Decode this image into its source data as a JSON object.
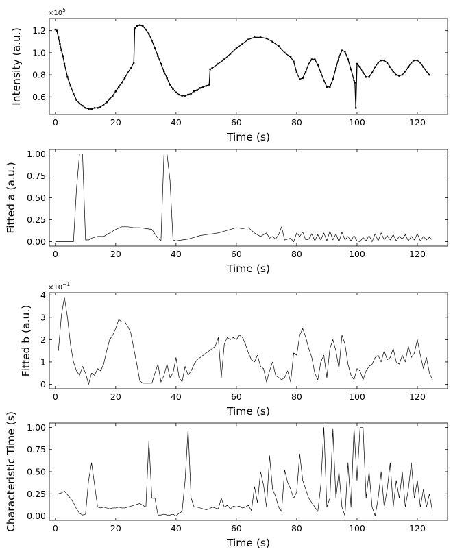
{
  "chart_data": [
    {
      "type": "line",
      "xlabel": "Time (s)",
      "ylabel": "Intensity (a.u.)",
      "scale_label": "×10",
      "scale_exp": "5",
      "xlim": [
        -2,
        130
      ],
      "ylim": [
        0.44,
        1.31
      ],
      "xticks": [
        0,
        20,
        40,
        60,
        80,
        100,
        120
      ],
      "yticks": [
        0.6,
        0.8,
        1.0,
        1.2
      ],
      "ytick_labels": [
        "0.6",
        "0.8",
        "1.0",
        "1.2"
      ],
      "series": [
        {
          "x": [
            0,
            0.5,
            1,
            1.5,
            2,
            2.5,
            3,
            4,
            5,
            6,
            7,
            8,
            9,
            10,
            11,
            12,
            13,
            14,
            15,
            16,
            17,
            18,
            19,
            20,
            21,
            22,
            23,
            24,
            25,
            26,
            26.3,
            27,
            28,
            29,
            30,
            31,
            32,
            33,
            34,
            35,
            36,
            37,
            38,
            39,
            40,
            41,
            42,
            43,
            44,
            45,
            46,
            47,
            48,
            49,
            50,
            51,
            51.3,
            52,
            54,
            56,
            58,
            60,
            62,
            64,
            66,
            68,
            70,
            72,
            74,
            76,
            78,
            79,
            80,
            81,
            82,
            83,
            84,
            85,
            86,
            87,
            88,
            89,
            90,
            91,
            92,
            93,
            94,
            95,
            96,
            97,
            98,
            99,
            99.3,
            99.6,
            100,
            101,
            102,
            103,
            104,
            105,
            106,
            107,
            108,
            109,
            110,
            111,
            112,
            113,
            114,
            115,
            116,
            117,
            118,
            119,
            120,
            121,
            122,
            123,
            124
          ],
          "y": [
            1.21,
            1.2,
            1.14,
            1.08,
            1.02,
            0.97,
            0.9,
            0.78,
            0.7,
            0.63,
            0.57,
            0.54,
            0.52,
            0.5,
            0.49,
            0.49,
            0.5,
            0.5,
            0.51,
            0.53,
            0.55,
            0.58,
            0.61,
            0.65,
            0.69,
            0.73,
            0.77,
            0.82,
            0.86,
            0.91,
            1.22,
            1.24,
            1.25,
            1.24,
            1.21,
            1.17,
            1.11,
            1.04,
            0.97,
            0.9,
            0.83,
            0.77,
            0.71,
            0.67,
            0.64,
            0.62,
            0.61,
            0.61,
            0.62,
            0.63,
            0.65,
            0.66,
            0.68,
            0.69,
            0.7,
            0.71,
            0.85,
            0.86,
            0.9,
            0.94,
            0.99,
            1.04,
            1.08,
            1.12,
            1.14,
            1.14,
            1.13,
            1.1,
            1.06,
            1.0,
            0.96,
            0.92,
            0.82,
            0.76,
            0.77,
            0.83,
            0.9,
            0.94,
            0.94,
            0.89,
            0.82,
            0.75,
            0.69,
            0.69,
            0.76,
            0.86,
            0.96,
            1.02,
            1.01,
            0.94,
            0.85,
            0.75,
            0.73,
            0.5,
            0.9,
            0.87,
            0.82,
            0.78,
            0.78,
            0.82,
            0.87,
            0.91,
            0.93,
            0.93,
            0.91,
            0.87,
            0.83,
            0.8,
            0.79,
            0.8,
            0.83,
            0.87,
            0.91,
            0.93,
            0.93,
            0.91,
            0.87,
            0.83,
            0.8
          ]
        }
      ]
    },
    {
      "type": "line",
      "xlabel": "Time (s)",
      "ylabel": "Fitted a (a.u.)",
      "xlim": [
        -2,
        130
      ],
      "ylim": [
        -0.05,
        1.05
      ],
      "xticks": [
        0,
        20,
        40,
        60,
        80,
        100,
        120
      ],
      "yticks": [
        0.0,
        0.25,
        0.5,
        0.75,
        1.0
      ],
      "ytick_labels": [
        "0.00",
        "0.25",
        "0.50",
        "0.75",
        "1.00"
      ],
      "series": [
        {
          "x": [
            0,
            2,
            4,
            6,
            7,
            8,
            9,
            10,
            11,
            12,
            14,
            16,
            18,
            20,
            22,
            24,
            26,
            28,
            30,
            32,
            34,
            35,
            36,
            37,
            38,
            39,
            40,
            42,
            44,
            46,
            48,
            50,
            52,
            54,
            56,
            58,
            60,
            62,
            64,
            66,
            68,
            70,
            71,
            72,
            73,
            74,
            75,
            76,
            77,
            78,
            79,
            80,
            81,
            82,
            83,
            84,
            85,
            86,
            87,
            88,
            89,
            90,
            91,
            92,
            93,
            94,
            95,
            96,
            97,
            98,
            99,
            100,
            101,
            102,
            103,
            104,
            105,
            106,
            107,
            108,
            109,
            110,
            111,
            112,
            113,
            114,
            115,
            116,
            117,
            118,
            119,
            120,
            121,
            122,
            123,
            124,
            125
          ],
          "y": [
            0.0,
            0.0,
            0.0,
            0.0,
            0.6,
            1.0,
            1.0,
            0.02,
            0.02,
            0.04,
            0.06,
            0.06,
            0.1,
            0.14,
            0.17,
            0.17,
            0.16,
            0.16,
            0.15,
            0.14,
            0.04,
            0.01,
            1.0,
            1.0,
            0.7,
            0.02,
            0.01,
            0.02,
            0.03,
            0.05,
            0.07,
            0.08,
            0.09,
            0.1,
            0.12,
            0.14,
            0.16,
            0.15,
            0.16,
            0.1,
            0.06,
            0.1,
            0.04,
            0.06,
            0.03,
            0.08,
            0.17,
            0.02,
            0.03,
            0.04,
            0.0,
            0.1,
            0.06,
            0.11,
            0.02,
            0.03,
            0.09,
            0.01,
            0.08,
            0.02,
            0.1,
            0.01,
            0.12,
            0.02,
            0.09,
            0.0,
            0.11,
            0.02,
            0.06,
            0.01,
            0.07,
            0.01,
            0.0,
            0.05,
            0.01,
            0.07,
            0.0,
            0.09,
            0.01,
            0.1,
            0.02,
            0.07,
            0.02,
            0.08,
            0.01,
            0.06,
            0.03,
            0.08,
            0.01,
            0.06,
            0.02,
            0.09,
            0.01,
            0.06,
            0.02,
            0.05,
            0.02
          ]
        }
      ]
    },
    {
      "type": "line",
      "xlabel": "Time (s)",
      "ylabel": "Fitted b (a.u.)",
      "scale_label": "×10",
      "scale_exp": "−1",
      "xlim": [
        -2,
        130
      ],
      "ylim": [
        -0.2,
        4.1
      ],
      "xticks": [
        0,
        20,
        40,
        60,
        80,
        100,
        120
      ],
      "yticks": [
        0,
        1,
        2,
        3,
        4
      ],
      "ytick_labels": [
        "0",
        "1",
        "2",
        "3",
        "4"
      ],
      "series": [
        {
          "x": [
            1,
            2,
            3,
            4,
            5,
            6,
            7,
            8,
            9,
            10,
            11,
            12,
            13,
            14,
            15,
            16,
            17,
            18,
            19,
            20,
            21,
            22,
            23,
            24,
            25,
            26,
            27,
            28,
            29,
            30,
            31,
            32,
            33,
            34,
            35,
            36,
            37,
            38,
            39,
            40,
            41,
            42,
            43,
            44,
            45,
            46,
            47,
            48,
            49,
            50,
            51,
            52,
            53,
            54,
            55,
            56,
            57,
            58,
            59,
            60,
            61,
            62,
            63,
            64,
            65,
            66,
            67,
            68,
            69,
            70,
            71,
            72,
            73,
            74,
            75,
            76,
            77,
            78,
            79,
            80,
            81,
            82,
            83,
            84,
            85,
            86,
            87,
            88,
            89,
            90,
            91,
            92,
            93,
            94,
            95,
            96,
            97,
            98,
            99,
            100,
            101,
            102,
            103,
            104,
            105,
            106,
            107,
            108,
            109,
            110,
            111,
            112,
            113,
            114,
            115,
            116,
            117,
            118,
            119,
            120,
            121,
            122,
            123,
            124,
            125
          ],
          "y": [
            1.5,
            3.1,
            3.9,
            3.0,
            1.8,
            1.0,
            0.6,
            0.4,
            0.8,
            0.5,
            0.0,
            0.5,
            0.4,
            0.7,
            0.6,
            0.9,
            1.5,
            2.0,
            2.2,
            2.5,
            2.9,
            2.8,
            2.8,
            2.6,
            2.3,
            1.6,
            0.9,
            0.15,
            0.05,
            0.05,
            0.05,
            0.05,
            0.5,
            0.9,
            0.1,
            0.4,
            0.9,
            0.3,
            0.5,
            1.2,
            0.3,
            0.1,
            0.8,
            0.4,
            0.6,
            0.9,
            1.1,
            1.2,
            1.3,
            1.4,
            1.5,
            1.6,
            1.7,
            2.1,
            0.3,
            1.8,
            2.1,
            2.0,
            2.1,
            2.0,
            2.2,
            2.1,
            1.8,
            1.4,
            1.1,
            1.0,
            1.3,
            0.8,
            0.7,
            0.1,
            0.6,
            1.0,
            0.4,
            0.3,
            0.2,
            0.3,
            0.6,
            0.1,
            1.4,
            1.3,
            2.2,
            2.5,
            2.1,
            1.6,
            1.2,
            0.5,
            0.2,
            1.0,
            1.3,
            0.3,
            1.6,
            2.0,
            1.5,
            0.7,
            2.2,
            1.8,
            0.9,
            0.4,
            0.2,
            0.7,
            0.6,
            0.2,
            0.6,
            0.8,
            0.9,
            1.2,
            1.3,
            1.0,
            1.5,
            1.1,
            1.2,
            1.6,
            1.0,
            0.9,
            1.3,
            1.0,
            1.7,
            1.2,
            1.4,
            2.0,
            1.3,
            0.7,
            1.2,
            0.5,
            0.2
          ]
        }
      ]
    },
    {
      "type": "line",
      "xlabel": "Time (s)",
      "ylabel": "Characteristic Time (s)",
      "xlim": [
        -2,
        130
      ],
      "ylim": [
        -0.05,
        1.05
      ],
      "xticks": [
        0,
        20,
        40,
        60,
        80,
        100,
        120
      ],
      "yticks": [
        0.0,
        0.25,
        0.5,
        0.75,
        1.0
      ],
      "ytick_labels": [
        "0.00",
        "0.25",
        "0.50",
        "0.75",
        "1.00"
      ],
      "series": [
        {
          "x": [
            1,
            2,
            3,
            4,
            5,
            6,
            7,
            8,
            9,
            10,
            11,
            12,
            13,
            14,
            15,
            16,
            17,
            18,
            19,
            20,
            21,
            22,
            23,
            24,
            25,
            26,
            27,
            28,
            29,
            30,
            31,
            32,
            33,
            34,
            35,
            36,
            37,
            38,
            39,
            40,
            41,
            42,
            43,
            44,
            45,
            46,
            47,
            48,
            49,
            50,
            51,
            52,
            53,
            54,
            55,
            56,
            57,
            58,
            59,
            60,
            61,
            62,
            63,
            64,
            65,
            66,
            67,
            68,
            69,
            70,
            71,
            72,
            73,
            74,
            75,
            76,
            77,
            78,
            79,
            80,
            81,
            82,
            83,
            84,
            85,
            86,
            87,
            88,
            89,
            90,
            91,
            92,
            93,
            94,
            95,
            96,
            97,
            98,
            99,
            100,
            101,
            102,
            103,
            104,
            105,
            106,
            107,
            108,
            109,
            110,
            111,
            112,
            113,
            114,
            115,
            116,
            117,
            118,
            119,
            120,
            121,
            122,
            123,
            124,
            125
          ],
          "y": [
            0.25,
            0.26,
            0.28,
            0.24,
            0.2,
            0.15,
            0.08,
            0.03,
            0.01,
            0.02,
            0.4,
            0.6,
            0.35,
            0.1,
            0.09,
            0.1,
            0.09,
            0.08,
            0.09,
            0.09,
            0.1,
            0.09,
            0.09,
            0.1,
            0.11,
            0.12,
            0.13,
            0.14,
            0.12,
            0.1,
            0.85,
            0.2,
            0.2,
            0.01,
            0.01,
            0.02,
            0.01,
            0.01,
            0.02,
            0.0,
            0.03,
            0.05,
            0.4,
            0.98,
            0.2,
            0.1,
            0.1,
            0.09,
            0.08,
            0.07,
            0.08,
            0.1,
            0.09,
            0.08,
            0.2,
            0.1,
            0.12,
            0.08,
            0.11,
            0.1,
            0.11,
            0.09,
            0.1,
            0.12,
            0.06,
            0.33,
            0.15,
            0.5,
            0.35,
            0.1,
            0.68,
            0.3,
            0.22,
            0.1,
            0.05,
            0.52,
            0.38,
            0.3,
            0.2,
            0.27,
            0.7,
            0.4,
            0.3,
            0.2,
            0.15,
            0.1,
            0.05,
            0.35,
            1.0,
            0.1,
            0.2,
            0.98,
            0.2,
            0.5,
            0.1,
            0.0,
            0.6,
            0.1,
            1.0,
            0.4,
            1.0,
            1.0,
            0.2,
            0.5,
            0.1,
            0.0,
            0.2,
            0.5,
            0.1,
            0.3,
            0.6,
            0.1,
            0.4,
            0.2,
            0.5,
            0.1,
            0.3,
            0.6,
            0.2,
            0.4,
            0.1,
            0.3,
            0.1,
            0.25,
            0.05
          ]
        }
      ]
    }
  ]
}
